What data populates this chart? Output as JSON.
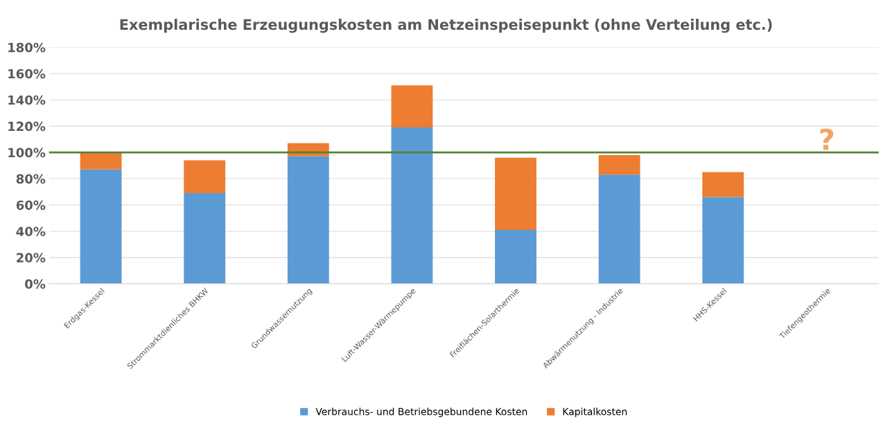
{
  "chart_data": {
    "type": "bar",
    "stacked": true,
    "title": "Exemplarische Erzeugungskosten am Netzeinspeisepunkt (ohne Verteilung etc.)",
    "categories": [
      "Erdgas-Kessel",
      "Strommarktdienliches BHKW",
      "Grundwassernutzung",
      "Luft-Wasser-Wärmepumpe",
      "Freiflächen-Solarthermie",
      "Abwärmenutzung - Industrie",
      "HHS-Kessel",
      "Tiefengeothermie"
    ],
    "series": [
      {
        "name": "Verbrauchs- und Betriebsgebundene Kosten",
        "color": "#5b9bd5",
        "values": [
          87,
          69,
          97,
          119,
          41,
          83,
          66,
          null
        ]
      },
      {
        "name": "Kapitalkosten",
        "color": "#ed7d31",
        "values": [
          13,
          25,
          10,
          32,
          55,
          15,
          19,
          null
        ]
      }
    ],
    "ylim": [
      0,
      180
    ],
    "yticks": [
      {
        "value": 0,
        "label": "0%"
      },
      {
        "value": 20,
        "label": "20%"
      },
      {
        "value": 40,
        "label": "40%"
      },
      {
        "value": 60,
        "label": "60%"
      },
      {
        "value": 80,
        "label": "80%"
      },
      {
        "value": 100,
        "label": "100%"
      },
      {
        "value": 120,
        "label": "120%"
      },
      {
        "value": 140,
        "label": "140%"
      },
      {
        "value": 160,
        "label": "160%"
      },
      {
        "value": 180,
        "label": "180%"
      }
    ],
    "ref_lines": [
      {
        "axis": "y",
        "value": 100,
        "color": "#548235"
      }
    ],
    "annotations": [
      "?"
    ],
    "grid": "y",
    "legend": "bottom"
  }
}
